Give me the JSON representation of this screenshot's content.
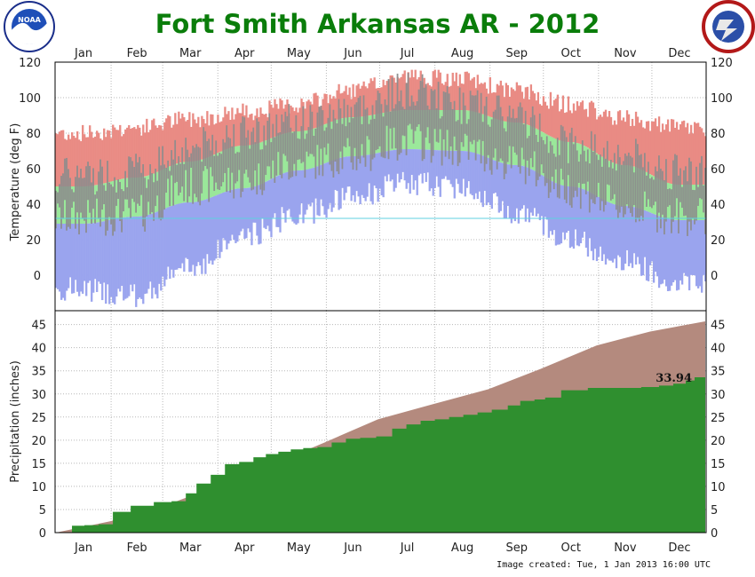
{
  "chart_data": [
    {
      "type": "bar",
      "panel": "temperature",
      "title": "Fort Smith Arkansas AR - 2012",
      "ylabel": "Temperature (deg F)",
      "ylim": [
        -20,
        120
      ],
      "yticks": [
        0,
        20,
        40,
        60,
        80,
        100,
        120
      ],
      "months": [
        "Jan",
        "Feb",
        "Mar",
        "Apr",
        "May",
        "Jun",
        "Jul",
        "Aug",
        "Sep",
        "Oct",
        "Nov",
        "Dec"
      ],
      "grid": true,
      "series": [
        {
          "name": "record-range",
          "color": "#e98b84",
          "monthly_record_high": [
            80,
            83,
            88,
            92,
            96,
            104,
            112,
            110,
            104,
            96,
            88,
            83
          ],
          "monthly_record_low": [
            -8,
            -12,
            4,
            22,
            34,
            44,
            52,
            50,
            36,
            20,
            8,
            -4
          ]
        },
        {
          "name": "normal-range",
          "color": "#9ae89a",
          "monthly_normal_high": [
            50,
            55,
            64,
            73,
            81,
            89,
            93,
            93,
            86,
            75,
            62,
            51
          ],
          "monthly_normal_low": [
            29,
            33,
            41,
            49,
            59,
            67,
            71,
            70,
            62,
            50,
            39,
            31
          ]
        },
        {
          "name": "observed-range",
          "color": "#8c8c8c",
          "monthly_observed_high": [
            56,
            58,
            72,
            80,
            86,
            93,
            104,
            96,
            89,
            74,
            67,
            58
          ],
          "monthly_observed_low": [
            32,
            34,
            50,
            53,
            63,
            67,
            76,
            71,
            63,
            49,
            38,
            33
          ]
        }
      ],
      "freezing_line": 32,
      "colors": {
        "normal_low_fill": "#9aa4ee",
        "freezing_line": "#5fd0e0"
      }
    },
    {
      "type": "area",
      "panel": "precipitation",
      "ylabel": "Precipitation (inches)",
      "ylim": [
        0,
        48
      ],
      "yticks": [
        0,
        5,
        10,
        15,
        20,
        25,
        30,
        35,
        40,
        45
      ],
      "months": [
        "Jan",
        "Feb",
        "Mar",
        "Apr",
        "May",
        "Jun",
        "Jul",
        "Aug",
        "Sep",
        "Oct",
        "Nov",
        "Dec"
      ],
      "grid": true,
      "annotation": "33.94",
      "series": [
        {
          "name": "normal-cumulative",
          "color": "#b48a7e",
          "x": [
            1,
            32,
            60,
            91,
            121,
            152,
            182,
            213,
            244,
            274,
            305,
            335,
            366
          ],
          "y": [
            0,
            2.5,
            5.5,
            10,
            14.5,
            19.5,
            24.5,
            27.8,
            31,
            35.5,
            40.5,
            43.5,
            45.7
          ]
        },
        {
          "name": "observed-cumulative",
          "color": "#2f8f2f",
          "x": [
            1,
            10,
            17,
            25,
            33,
            43,
            56,
            66,
            74,
            80,
            88,
            96,
            104,
            112,
            119,
            126,
            133,
            140,
            148,
            156,
            164,
            172,
            181,
            190,
            198,
            206,
            214,
            222,
            230,
            238,
            246,
            255,
            262,
            270,
            276,
            285,
            300,
            315,
            330,
            340,
            348,
            355,
            360,
            366
          ],
          "y": [
            0,
            1.5,
            1.6,
            1.8,
            4.5,
            5.8,
            6.6,
            6.8,
            8.5,
            10.6,
            12.5,
            14.8,
            15.3,
            16.3,
            17,
            17.5,
            18,
            18.3,
            18.5,
            19.5,
            20.3,
            20.5,
            20.8,
            22.5,
            23.4,
            24.2,
            24.5,
            25,
            25.5,
            26,
            26.6,
            27.5,
            28.5,
            28.8,
            29.2,
            30.8,
            31.3,
            31.3,
            31.5,
            31.8,
            32.2,
            32.9,
            33.6,
            33.94
          ]
        }
      ]
    }
  ],
  "footer": {
    "created": "Image created: Tue, 1 Jan 2013 16:00 UTC"
  },
  "logos": {
    "left": "NOAA",
    "right": "NATIONAL WEATHER SERVICE"
  }
}
